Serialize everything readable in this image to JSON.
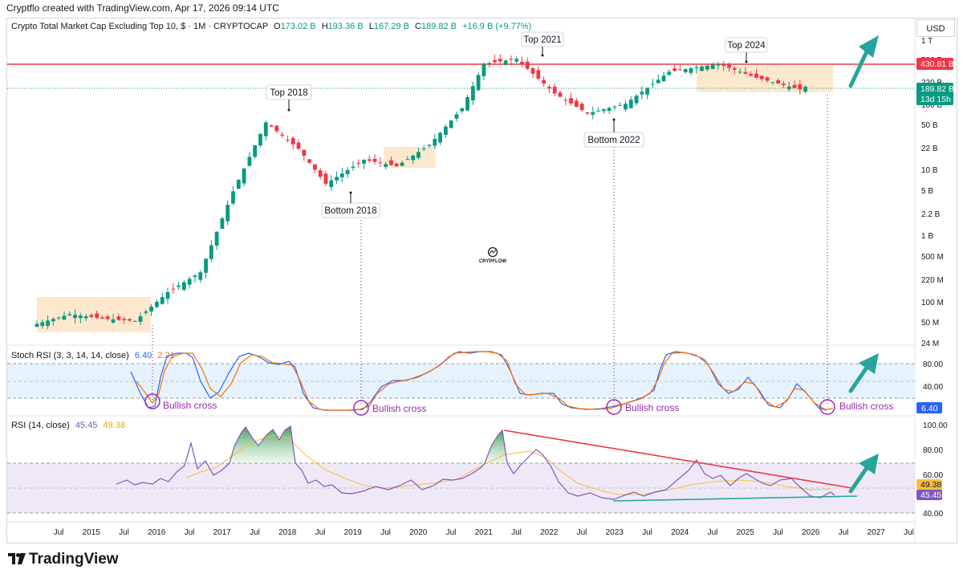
{
  "header": {
    "text": "Cryptflo created with TradingView.com, Apr 17, 2026 09:14 UTC"
  },
  "footer": {
    "brand": "TradingView"
  },
  "price_scale": {
    "currency": "USD"
  },
  "colors": {
    "up": "#089981",
    "down": "#f23645",
    "resistance": "#f23645",
    "range_box": "#fce5c4",
    "rsi": "#7e57c2",
    "rsi_ma": "#f5c040",
    "stoch_k": "#2962ff",
    "stoch_d": "#ff6d00",
    "arrow": "#26a69a",
    "annotation": "#9c27b0"
  },
  "main": {
    "legend": {
      "title": "Crypto Total Market Cap Excluding Top 10, $ · 1M · CRYPTOCAP",
      "o_label": "O",
      "o": "173.02 B",
      "h_label": "H",
      "h": "193.36 B",
      "l_label": "L",
      "l": "167.29 B",
      "c_label": "C",
      "c": "189.82 B",
      "change": "+16.9 B (+9.77%)"
    },
    "resistance_label": "430.81 B",
    "price_label": "189.82 B",
    "countdown": "13d 15h",
    "watermark": "CRYPFLOW"
  },
  "stoch": {
    "legend": {
      "name": "Stoch RSI (3, 3, 14, 14, close)",
      "k": "6.40",
      "d": "2.21"
    },
    "k_label": "6.40",
    "axis_ticks": [
      "80.00",
      "40.00",
      "20.00"
    ]
  },
  "rsi": {
    "legend": {
      "name": "RSI (14, close)",
      "rsi": "45.45",
      "ma": "49.38"
    },
    "rsi_label": "45.45",
    "ma_label": "49.38",
    "axis_ticks": [
      "100.00",
      "80.00",
      "60.00",
      "40.00"
    ]
  },
  "chart_data": [
    {
      "type": "candlestick",
      "title": "Crypto Total Market Cap Excluding Top 10, $ · 1M · CRYPTOCAP",
      "y_scale": "log",
      "y_ticks": [
        "1 T",
        "500 B",
        "220 B",
        "100 B",
        "50 B",
        "22 B",
        "10 B",
        "5 B",
        "2.2 B",
        "1 B",
        "500 M",
        "220 M",
        "100 M",
        "50 M",
        "24 M"
      ],
      "x_ticks": [
        "Jul",
        "2015",
        "Jul",
        "2016",
        "Jul",
        "2017",
        "Jul",
        "2018",
        "Jul",
        "2019",
        "Jul",
        "2020",
        "Jul",
        "2021",
        "Jul",
        "2022",
        "Jul",
        "2023",
        "Jul",
        "2024",
        "Jul",
        "2025",
        "Jul",
        "2026",
        "Jul",
        "2027",
        "Jul"
      ],
      "approx_monthly_close_billions": [
        {
          "date": "2014-07",
          "close": 0.05
        },
        {
          "date": "2015-01",
          "close": 0.07
        },
        {
          "date": "2015-07",
          "close": 0.06
        },
        {
          "date": "2016-01",
          "close": 0.055
        },
        {
          "date": "2016-07",
          "close": 0.15
        },
        {
          "date": "2017-01",
          "close": 0.3
        },
        {
          "date": "2017-07",
          "close": 5
        },
        {
          "date": "2018-01",
          "close": 55
        },
        {
          "date": "2018-07",
          "close": 22
        },
        {
          "date": "2018-12",
          "close": 6.5
        },
        {
          "date": "2019-07",
          "close": 15
        },
        {
          "date": "2020-01",
          "close": 12
        },
        {
          "date": "2020-07",
          "close": 25
        },
        {
          "date": "2021-01",
          "close": 90
        },
        {
          "date": "2021-05",
          "close": 420
        },
        {
          "date": "2021-11",
          "close": 500
        },
        {
          "date": "2022-06",
          "close": 150
        },
        {
          "date": "2022-12",
          "close": 75
        },
        {
          "date": "2023-07",
          "close": 105
        },
        {
          "date": "2024-03",
          "close": 320
        },
        {
          "date": "2024-12",
          "close": 420
        },
        {
          "date": "2025-07",
          "close": 260
        },
        {
          "date": "2026-03",
          "close": 173
        },
        {
          "date": "2026-04",
          "close": 189.82
        }
      ],
      "horizontal_line": {
        "value": 430.81,
        "unit": "B"
      },
      "annotations": [
        "Top 2018",
        "Bottom 2018",
        "Top 2021",
        "Bottom 2022",
        "Top 2024"
      ]
    },
    {
      "type": "line",
      "title": "Stoch RSI (3, 3, 14, 14, close)",
      "series": [
        {
          "name": "K",
          "last": 6.4
        },
        {
          "name": "D",
          "last": 2.21
        }
      ],
      "bands": [
        80,
        40,
        20
      ],
      "annotations": [
        "Bullish cross",
        "Bullish cross",
        "Bullish cross",
        "Bullish cross"
      ]
    },
    {
      "type": "line",
      "title": "RSI (14, close)",
      "series": [
        {
          "name": "RSI",
          "last": 45.45
        },
        {
          "name": "MA",
          "last": 49.38
        }
      ],
      "bands": [
        70,
        50,
        30
      ],
      "y_ticks": [
        "100.00",
        "80.00",
        "60.00",
        "40.00"
      ]
    }
  ],
  "annotations": {
    "top2018": "Top 2018",
    "bottom2018": "Bottom 2018",
    "top2021": "Top 2021",
    "bottom2022": "Bottom 2022",
    "top2024": "Top 2024",
    "bullish1": "Bullish cross",
    "bullish2": "Bullish cross",
    "bullish3": "Bullish cross",
    "bullish4": "Bullish cross"
  }
}
